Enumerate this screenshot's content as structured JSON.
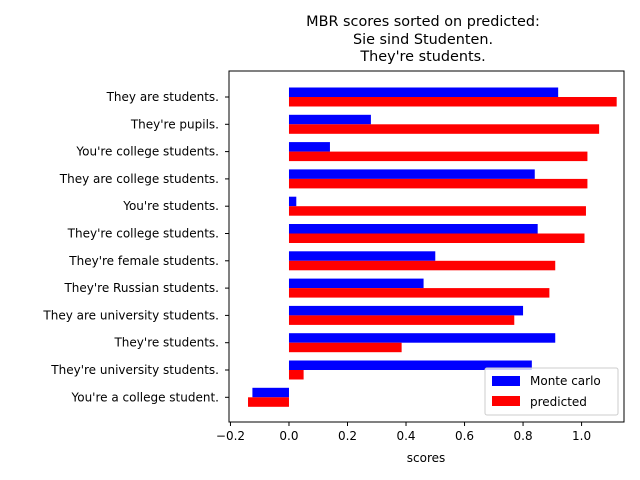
{
  "chart_data": {
    "type": "bar",
    "orientation": "horizontal",
    "title_lines": [
      "MBR scores sorted on predicted:",
      "Sie sind Studenten.",
      "They're students."
    ],
    "xlabel": "scores",
    "ylabel": "",
    "xlim": [
      -0.205,
      1.145
    ],
    "xticks": [
      -0.2,
      0.0,
      0.2,
      0.4,
      0.6,
      0.8,
      1.0
    ],
    "xtick_labels": [
      "−0.2",
      "0.0",
      "0.2",
      "0.4",
      "0.6",
      "0.8",
      "1.0"
    ],
    "grid": false,
    "legend_position": "lower-right",
    "categories": [
      "They are students.",
      "They're pupils.",
      "You're college students.",
      "They are college students.",
      "You're students.",
      "They're college students.",
      "They're female students.",
      "They're Russian students.",
      "They are university students.",
      "They're students.",
      "They're university students.",
      "You're a college student."
    ],
    "series": [
      {
        "name": "Monte carlo",
        "color": "#0000ff",
        "values": [
          0.92,
          0.28,
          0.14,
          0.84,
          0.025,
          0.85,
          0.5,
          0.46,
          0.8,
          0.91,
          0.83,
          -0.125
        ]
      },
      {
        "name": "predicted",
        "color": "#ff0000",
        "values": [
          1.12,
          1.06,
          1.02,
          1.02,
          1.015,
          1.01,
          0.91,
          0.89,
          0.77,
          0.385,
          0.05,
          -0.14
        ]
      }
    ]
  }
}
